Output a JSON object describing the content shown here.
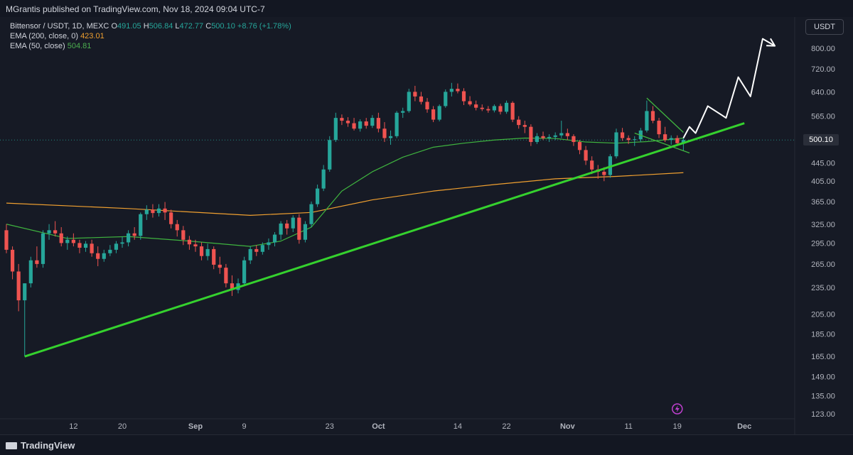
{
  "header": {
    "published": "MGrantis published on TradingView.com, Nov 18, 2024 09:04 UTC-7"
  },
  "legend": {
    "symbol": "Bittensor / USDT, 1D, MEXC",
    "o_label": "O",
    "o_value": "491.05",
    "h_label": "H",
    "h_value": "506.84",
    "l_label": "L",
    "l_value": "472.77",
    "c_label": "C",
    "c_value": "500.10",
    "change": "+8.76 (+1.78%)",
    "ema200_label": "EMA (200, close, 0)",
    "ema200_value": "423.01",
    "ema50_label": "EMA (50, close)",
    "ema50_value": "504.81"
  },
  "currency_button": "USDT",
  "last_price": "500.10",
  "footer": {
    "brand": "TradingView"
  },
  "colors": {
    "up": "#26a69a",
    "down": "#ef5350",
    "ema200": "#f0a030",
    "ema50": "#3fb43f",
    "trendline": "#35d12e",
    "projection": "#ffffff"
  },
  "chart_data": {
    "type": "candlestick",
    "symbol": "Bittensor / USDT",
    "interval": "1D",
    "exchange": "MEXC",
    "y_scale": "log",
    "y_ticks": [
      "800.00",
      "720.00",
      "640.00",
      "565.00",
      "500.10",
      "445.00",
      "405.00",
      "365.00",
      "325.00",
      "295.00",
      "265.00",
      "235.00",
      "205.00",
      "185.00",
      "165.00",
      "149.00",
      "135.00",
      "123.00"
    ],
    "x_ticks": [
      "12",
      "20",
      "Sep",
      "9",
      "23",
      "Oct",
      "14",
      "22",
      "Nov",
      "11",
      "19",
      "Dec"
    ],
    "x_tick_days": [
      11,
      19,
      31,
      39,
      53,
      61,
      74,
      82,
      92,
      102,
      110,
      121
    ],
    "candles": [
      {
        "d": 0,
        "o": 315,
        "h": 325,
        "l": 280,
        "c": 285
      },
      {
        "d": 1,
        "o": 285,
        "h": 290,
        "l": 245,
        "c": 255
      },
      {
        "d": 2,
        "o": 255,
        "h": 265,
        "l": 208,
        "c": 220
      },
      {
        "d": 3,
        "o": 220,
        "h": 240,
        "l": 165,
        "c": 240
      },
      {
        "d": 4,
        "o": 240,
        "h": 275,
        "l": 235,
        "c": 270
      },
      {
        "d": 5,
        "o": 270,
        "h": 290,
        "l": 260,
        "c": 265
      },
      {
        "d": 6,
        "o": 265,
        "h": 315,
        "l": 260,
        "c": 310
      },
      {
        "d": 7,
        "o": 310,
        "h": 325,
        "l": 300,
        "c": 315
      },
      {
        "d": 8,
        "o": 315,
        "h": 330,
        "l": 305,
        "c": 310
      },
      {
        "d": 9,
        "o": 310,
        "h": 320,
        "l": 290,
        "c": 295
      },
      {
        "d": 10,
        "o": 295,
        "h": 305,
        "l": 285,
        "c": 300
      },
      {
        "d": 11,
        "o": 300,
        "h": 310,
        "l": 290,
        "c": 295
      },
      {
        "d": 12,
        "o": 295,
        "h": 300,
        "l": 280,
        "c": 288
      },
      {
        "d": 13,
        "o": 288,
        "h": 298,
        "l": 282,
        "c": 294
      },
      {
        "d": 14,
        "o": 294,
        "h": 300,
        "l": 275,
        "c": 280
      },
      {
        "d": 15,
        "o": 280,
        "h": 290,
        "l": 262,
        "c": 272
      },
      {
        "d": 16,
        "o": 272,
        "h": 285,
        "l": 268,
        "c": 280
      },
      {
        "d": 17,
        "o": 280,
        "h": 292,
        "l": 276,
        "c": 285
      },
      {
        "d": 18,
        "o": 285,
        "h": 298,
        "l": 280,
        "c": 294
      },
      {
        "d": 19,
        "o": 294,
        "h": 305,
        "l": 288,
        "c": 296
      },
      {
        "d": 20,
        "o": 296,
        "h": 315,
        "l": 290,
        "c": 310
      },
      {
        "d": 21,
        "o": 310,
        "h": 320,
        "l": 300,
        "c": 306
      },
      {
        "d": 22,
        "o": 306,
        "h": 345,
        "l": 300,
        "c": 342
      },
      {
        "d": 23,
        "o": 342,
        "h": 358,
        "l": 332,
        "c": 350
      },
      {
        "d": 24,
        "o": 350,
        "h": 360,
        "l": 336,
        "c": 344
      },
      {
        "d": 25,
        "o": 344,
        "h": 360,
        "l": 338,
        "c": 352
      },
      {
        "d": 26,
        "o": 352,
        "h": 364,
        "l": 332,
        "c": 345
      },
      {
        "d": 27,
        "o": 345,
        "h": 350,
        "l": 318,
        "c": 325
      },
      {
        "d": 28,
        "o": 325,
        "h": 332,
        "l": 305,
        "c": 315
      },
      {
        "d": 29,
        "o": 315,
        "h": 322,
        "l": 292,
        "c": 300
      },
      {
        "d": 30,
        "o": 300,
        "h": 306,
        "l": 285,
        "c": 293
      },
      {
        "d": 31,
        "o": 293,
        "h": 300,
        "l": 282,
        "c": 290
      },
      {
        "d": 32,
        "o": 290,
        "h": 296,
        "l": 270,
        "c": 276
      },
      {
        "d": 33,
        "o": 276,
        "h": 294,
        "l": 270,
        "c": 286
      },
      {
        "d": 34,
        "o": 286,
        "h": 290,
        "l": 258,
        "c": 264
      },
      {
        "d": 35,
        "o": 264,
        "h": 275,
        "l": 252,
        "c": 260
      },
      {
        "d": 36,
        "o": 260,
        "h": 265,
        "l": 235,
        "c": 240
      },
      {
        "d": 37,
        "o": 240,
        "h": 250,
        "l": 225,
        "c": 232
      },
      {
        "d": 38,
        "o": 232,
        "h": 246,
        "l": 228,
        "c": 240
      },
      {
        "d": 39,
        "o": 240,
        "h": 275,
        "l": 238,
        "c": 270
      },
      {
        "d": 40,
        "o": 270,
        "h": 290,
        "l": 265,
        "c": 286
      },
      {
        "d": 41,
        "o": 286,
        "h": 292,
        "l": 276,
        "c": 282
      },
      {
        "d": 42,
        "o": 282,
        "h": 296,
        "l": 278,
        "c": 292
      },
      {
        "d": 43,
        "o": 292,
        "h": 302,
        "l": 285,
        "c": 296
      },
      {
        "d": 44,
        "o": 296,
        "h": 312,
        "l": 290,
        "c": 308
      },
      {
        "d": 45,
        "o": 308,
        "h": 330,
        "l": 300,
        "c": 326
      },
      {
        "d": 46,
        "o": 326,
        "h": 332,
        "l": 308,
        "c": 318
      },
      {
        "d": 47,
        "o": 318,
        "h": 340,
        "l": 312,
        "c": 336
      },
      {
        "d": 48,
        "o": 336,
        "h": 342,
        "l": 294,
        "c": 300
      },
      {
        "d": 49,
        "o": 300,
        "h": 330,
        "l": 296,
        "c": 325
      },
      {
        "d": 50,
        "o": 325,
        "h": 365,
        "l": 320,
        "c": 360
      },
      {
        "d": 51,
        "o": 360,
        "h": 398,
        "l": 355,
        "c": 390
      },
      {
        "d": 52,
        "o": 390,
        "h": 440,
        "l": 385,
        "c": 430
      },
      {
        "d": 53,
        "o": 430,
        "h": 510,
        "l": 425,
        "c": 500
      },
      {
        "d": 54,
        "o": 500,
        "h": 575,
        "l": 495,
        "c": 560
      },
      {
        "d": 55,
        "o": 560,
        "h": 570,
        "l": 540,
        "c": 552
      },
      {
        "d": 56,
        "o": 552,
        "h": 562,
        "l": 535,
        "c": 545
      },
      {
        "d": 57,
        "o": 545,
        "h": 560,
        "l": 525,
        "c": 530
      },
      {
        "d": 58,
        "o": 530,
        "h": 556,
        "l": 522,
        "c": 550
      },
      {
        "d": 59,
        "o": 550,
        "h": 560,
        "l": 530,
        "c": 538
      },
      {
        "d": 60,
        "o": 538,
        "h": 568,
        "l": 532,
        "c": 560
      },
      {
        "d": 61,
        "o": 560,
        "h": 575,
        "l": 520,
        "c": 530
      },
      {
        "d": 62,
        "o": 530,
        "h": 548,
        "l": 495,
        "c": 505
      },
      {
        "d": 63,
        "o": 505,
        "h": 525,
        "l": 488,
        "c": 510
      },
      {
        "d": 64,
        "o": 510,
        "h": 580,
        "l": 505,
        "c": 575
      },
      {
        "d": 65,
        "o": 575,
        "h": 590,
        "l": 560,
        "c": 580
      },
      {
        "d": 66,
        "o": 580,
        "h": 650,
        "l": 575,
        "c": 640
      },
      {
        "d": 67,
        "o": 640,
        "h": 660,
        "l": 610,
        "c": 625
      },
      {
        "d": 68,
        "o": 625,
        "h": 640,
        "l": 600,
        "c": 608
      },
      {
        "d": 69,
        "o": 608,
        "h": 620,
        "l": 575,
        "c": 585
      },
      {
        "d": 70,
        "o": 585,
        "h": 595,
        "l": 548,
        "c": 555
      },
      {
        "d": 71,
        "o": 555,
        "h": 600,
        "l": 550,
        "c": 595
      },
      {
        "d": 72,
        "o": 595,
        "h": 648,
        "l": 590,
        "c": 640
      },
      {
        "d": 73,
        "o": 640,
        "h": 670,
        "l": 625,
        "c": 650
      },
      {
        "d": 74,
        "o": 650,
        "h": 668,
        "l": 635,
        "c": 642
      },
      {
        "d": 75,
        "o": 642,
        "h": 652,
        "l": 598,
        "c": 610
      },
      {
        "d": 76,
        "o": 610,
        "h": 626,
        "l": 595,
        "c": 600
      },
      {
        "d": 77,
        "o": 600,
        "h": 612,
        "l": 582,
        "c": 590
      },
      {
        "d": 78,
        "o": 590,
        "h": 600,
        "l": 580,
        "c": 586
      },
      {
        "d": 79,
        "o": 586,
        "h": 595,
        "l": 575,
        "c": 582
      },
      {
        "d": 80,
        "o": 582,
        "h": 600,
        "l": 576,
        "c": 595
      },
      {
        "d": 81,
        "o": 595,
        "h": 602,
        "l": 570,
        "c": 578
      },
      {
        "d": 82,
        "o": 578,
        "h": 612,
        "l": 572,
        "c": 605
      },
      {
        "d": 83,
        "o": 605,
        "h": 610,
        "l": 548,
        "c": 555
      },
      {
        "d": 84,
        "o": 555,
        "h": 565,
        "l": 530,
        "c": 540
      },
      {
        "d": 85,
        "o": 540,
        "h": 552,
        "l": 518,
        "c": 535
      },
      {
        "d": 86,
        "o": 535,
        "h": 542,
        "l": 485,
        "c": 495
      },
      {
        "d": 87,
        "o": 495,
        "h": 518,
        "l": 490,
        "c": 510
      },
      {
        "d": 88,
        "o": 510,
        "h": 522,
        "l": 500,
        "c": 505
      },
      {
        "d": 89,
        "o": 505,
        "h": 515,
        "l": 495,
        "c": 508
      },
      {
        "d": 90,
        "o": 508,
        "h": 520,
        "l": 500,
        "c": 512
      },
      {
        "d": 91,
        "o": 512,
        "h": 552,
        "l": 505,
        "c": 518
      },
      {
        "d": 92,
        "o": 518,
        "h": 530,
        "l": 500,
        "c": 510
      },
      {
        "d": 93,
        "o": 510,
        "h": 515,
        "l": 485,
        "c": 495
      },
      {
        "d": 94,
        "o": 495,
        "h": 500,
        "l": 465,
        "c": 475
      },
      {
        "d": 95,
        "o": 475,
        "h": 485,
        "l": 440,
        "c": 450
      },
      {
        "d": 96,
        "o": 450,
        "h": 460,
        "l": 420,
        "c": 430
      },
      {
        "d": 97,
        "o": 430,
        "h": 440,
        "l": 410,
        "c": 425
      },
      {
        "d": 98,
        "o": 425,
        "h": 435,
        "l": 405,
        "c": 418
      },
      {
        "d": 99,
        "o": 418,
        "h": 465,
        "l": 412,
        "c": 460
      },
      {
        "d": 100,
        "o": 460,
        "h": 530,
        "l": 455,
        "c": 520
      },
      {
        "d": 101,
        "o": 520,
        "h": 532,
        "l": 498,
        "c": 505
      },
      {
        "d": 102,
        "o": 505,
        "h": 512,
        "l": 490,
        "c": 500
      },
      {
        "d": 103,
        "o": 500,
        "h": 510,
        "l": 485,
        "c": 502
      },
      {
        "d": 104,
        "o": 502,
        "h": 532,
        "l": 495,
        "c": 525
      },
      {
        "d": 105,
        "o": 525,
        "h": 612,
        "l": 520,
        "c": 580
      },
      {
        "d": 106,
        "o": 580,
        "h": 595,
        "l": 545,
        "c": 552
      },
      {
        "d": 107,
        "o": 552,
        "h": 560,
        "l": 505,
        "c": 515
      },
      {
        "d": 108,
        "o": 515,
        "h": 535,
        "l": 495,
        "c": 500
      },
      {
        "d": 109,
        "o": 500,
        "h": 512,
        "l": 488,
        "c": 505
      },
      {
        "d": 110,
        "o": 505,
        "h": 512,
        "l": 490,
        "c": 492
      },
      {
        "d": 111,
        "o": 491.05,
        "h": 506.84,
        "l": 472.77,
        "c": 500.1
      }
    ],
    "ema200": [
      [
        0,
        362
      ],
      [
        20,
        352
      ],
      [
        40,
        340
      ],
      [
        50,
        345
      ],
      [
        60,
        368
      ],
      [
        70,
        385
      ],
      [
        80,
        398
      ],
      [
        90,
        410
      ],
      [
        100,
        415
      ],
      [
        111,
        423.01
      ]
    ],
    "ema50": [
      [
        0,
        325
      ],
      [
        10,
        302
      ],
      [
        20,
        305
      ],
      [
        30,
        298
      ],
      [
        40,
        290
      ],
      [
        45,
        298
      ],
      [
        50,
        320
      ],
      [
        55,
        385
      ],
      [
        60,
        425
      ],
      [
        65,
        458
      ],
      [
        70,
        482
      ],
      [
        75,
        492
      ],
      [
        80,
        500
      ],
      [
        85,
        505
      ],
      [
        90,
        504
      ],
      [
        95,
        495
      ],
      [
        100,
        492
      ],
      [
        105,
        496
      ],
      [
        111,
        504.81
      ]
    ],
    "trendline": [
      [
        3,
        165
      ],
      [
        121,
        545
      ]
    ],
    "wedge_upper": [
      [
        105,
        620
      ],
      [
        111,
        520
      ]
    ],
    "wedge_lower": [
      [
        103,
        518
      ],
      [
        112,
        468
      ]
    ],
    "projection": [
      [
        111,
        505
      ],
      [
        112,
        535
      ],
      [
        113,
        518
      ],
      [
        115,
        595
      ],
      [
        118,
        560
      ],
      [
        120,
        690
      ],
      [
        122,
        625
      ],
      [
        124,
        840
      ],
      [
        126,
        810
      ]
    ],
    "event_marker_day": 110
  }
}
